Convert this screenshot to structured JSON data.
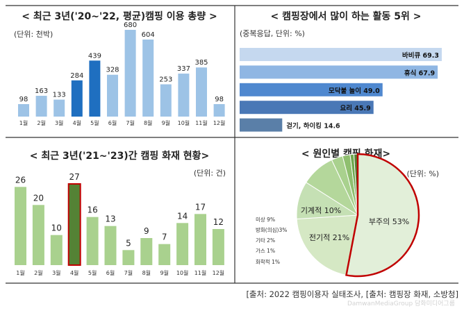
{
  "chart_data": [
    {
      "type": "bar",
      "title": "< 최근 3년('20~'22, 평균)캠핑 이용 총량 >",
      "unit_label": "(단위: 천박)",
      "categories": [
        "1월",
        "2월",
        "3월",
        "4월",
        "5월",
        "6월",
        "7월",
        "8월",
        "9월",
        "10월",
        "11월",
        "12월"
      ],
      "values": [
        98,
        163,
        133,
        284,
        439,
        328,
        680,
        604,
        253,
        337,
        385,
        98
      ],
      "highlight_indices": [
        3,
        4
      ],
      "colors": {
        "normal": "#9dc3e6",
        "highlight": "#1f6fc0"
      }
    },
    {
      "type": "bar",
      "orientation": "horizontal",
      "title": "< 캠핑장에서 많이 하는 활동 5위 >",
      "unit_label": "(중복응답, 단위: %)",
      "categories": [
        "바비큐",
        "휴식",
        "모닥불 놀이",
        "요리",
        "걷기, 하이킹"
      ],
      "values": [
        69.3,
        67.9,
        49.0,
        45.9,
        14.6
      ],
      "colors": [
        "#c5d8ef",
        "#8fb6e3",
        "#4f88cf",
        "#4a78b6",
        "#5a7fa8"
      ]
    },
    {
      "type": "bar",
      "title": "< 최근 3년('21~'23)간 캠핑 화재 현황>",
      "unit_label": "(단위: 건)",
      "categories": [
        "1월",
        "2월",
        "3월",
        "4월",
        "5월",
        "6월",
        "7월",
        "8월",
        "9월",
        "10월",
        "11월",
        "12월"
      ],
      "values": [
        26,
        20,
        10,
        27,
        16,
        13,
        5,
        9,
        7,
        14,
        17,
        12
      ],
      "highlight_indices": [
        3
      ],
      "colors": {
        "normal": "#a9d18e",
        "highlight": "#548235",
        "highlight_border": "#c00000"
      }
    },
    {
      "type": "pie",
      "title": "< 원인별 캠핑 화재>",
      "unit_label": "(단위: %)",
      "slices": [
        {
          "label": "부주의 53%",
          "value": 53,
          "color": "#e2efd9",
          "border": "#c00000"
        },
        {
          "label": "전기적 21%",
          "value": 21,
          "color": "#d5e8c4"
        },
        {
          "label": "기계적 10%",
          "value": 10,
          "color": "#c5e0b4"
        },
        {
          "label": "미상 9%",
          "value": 9,
          "color": "#b4d79b"
        },
        {
          "label": "방화(의심)3%",
          "value": 3,
          "color": "#a9d18e"
        },
        {
          "label": "기타 2%",
          "value": 2,
          "color": "#8fbf6f"
        },
        {
          "label": "가스 1%",
          "value": 1,
          "color": "#6fa84f"
        },
        {
          "label": "화학적 1%",
          "value": 1,
          "color": "#548235"
        }
      ]
    }
  ],
  "source_text": "[출처: 2022 캠핑이용자 실태조사, [출처: 캠핑장 화재, 소방청]",
  "watermark": "DamwanMediaGroup 담화미디어그룹"
}
